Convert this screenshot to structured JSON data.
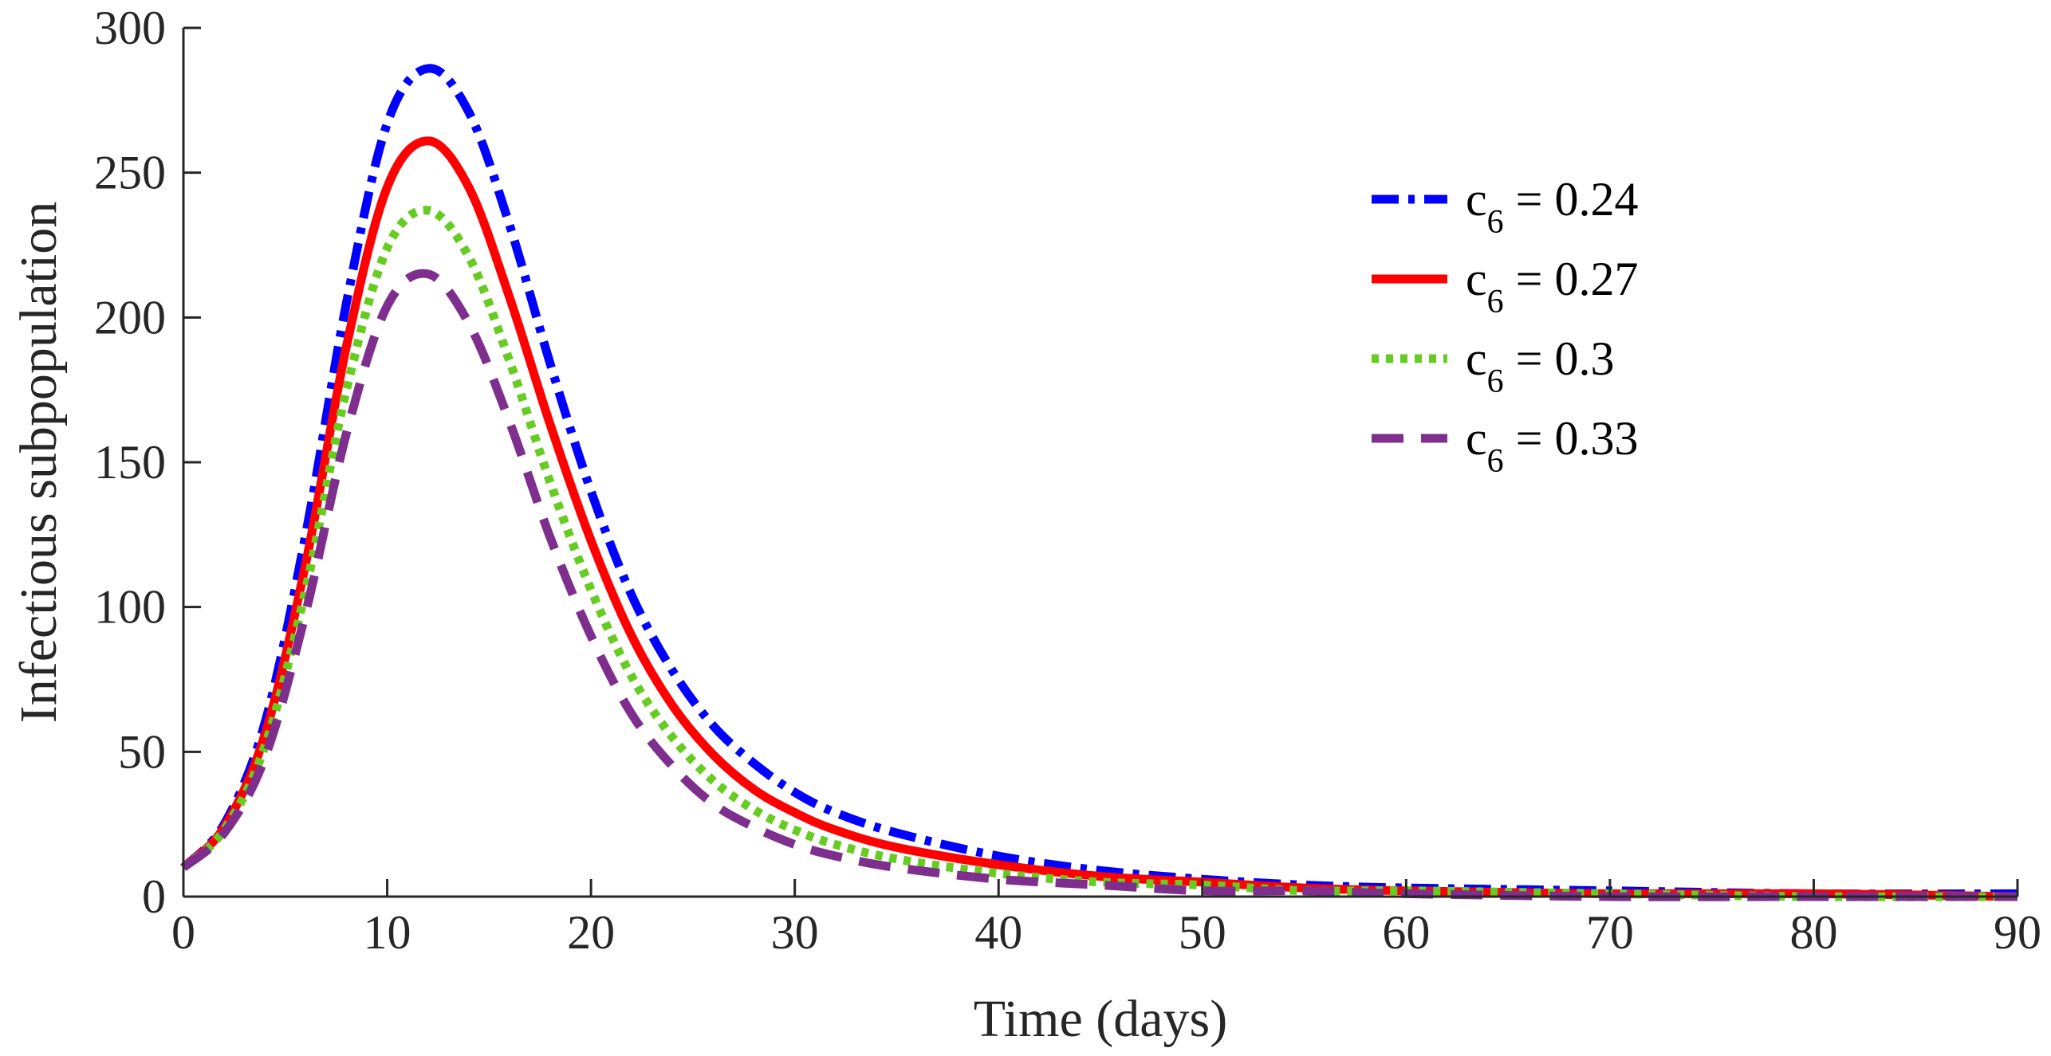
{
  "chart_data": {
    "type": "line",
    "title": "",
    "xlabel": "Time (days)",
    "ylabel": "Infectious subpopulation",
    "xlim": [
      0,
      90
    ],
    "ylim": [
      0,
      300
    ],
    "xticks": [
      0,
      10,
      20,
      30,
      40,
      50,
      60,
      70,
      80,
      90
    ],
    "yticks": [
      0,
      50,
      100,
      150,
      200,
      250,
      300
    ],
    "grid": false,
    "legend_position": "top-right",
    "series": [
      {
        "name": "c6 = 0.24",
        "label_base": "c",
        "label_sub": "6",
        "label_rest": " = 0.24",
        "color": "#0000ff",
        "style": "dashdot",
        "x": [
          0,
          2,
          4,
          6,
          8,
          10,
          12,
          14,
          16,
          18,
          20,
          22,
          24,
          26,
          28,
          30,
          32,
          35,
          40,
          45,
          50,
          55,
          60,
          70,
          80,
          90
        ],
        "y": [
          10,
          25,
          60,
          125,
          205,
          267,
          286,
          271,
          232,
          184,
          140,
          104,
          78,
          59,
          46,
          36,
          29,
          22,
          14,
          9,
          6,
          4,
          3,
          2,
          1,
          1
        ]
      },
      {
        "name": "c6 = 0.27",
        "label_base": "c",
        "label_sub": "6",
        "label_rest": " = 0.27",
        "color": "#ff0000",
        "style": "solid",
        "x": [
          0,
          2,
          4,
          6,
          8,
          10,
          12,
          14,
          16,
          18,
          20,
          22,
          24,
          26,
          28,
          30,
          32,
          35,
          40,
          45,
          50,
          55,
          60,
          70,
          80,
          90
        ],
        "y": [
          10,
          24,
          56,
          115,
          190,
          245,
          261,
          245,
          207,
          163,
          123,
          90,
          66,
          49,
          37,
          29,
          23,
          17,
          11,
          7,
          5,
          3,
          2,
          1,
          1,
          0
        ]
      },
      {
        "name": "c6 = 0.3",
        "label_base": "c",
        "label_sub": "6",
        "label_rest": " = 0.3",
        "color": "#66cc22",
        "style": "dotted",
        "x": [
          0,
          2,
          4,
          6,
          8,
          10,
          12,
          14,
          16,
          18,
          20,
          22,
          24,
          26,
          28,
          30,
          32,
          35,
          40,
          45,
          50,
          55,
          60,
          70,
          80,
          90
        ],
        "y": [
          10,
          23,
          52,
          106,
          175,
          224,
          237,
          221,
          185,
          143,
          106,
          76,
          55,
          40,
          30,
          23,
          18,
          13,
          8,
          5,
          4,
          2,
          2,
          1,
          0,
          0
        ]
      },
      {
        "name": "c6 = 0.33",
        "label_base": "c",
        "label_sub": "6",
        "label_rest": " = 0.33",
        "color": "#7e2f8e",
        "style": "dashed",
        "x": [
          0,
          2,
          4,
          6,
          8,
          10,
          12,
          14,
          16,
          18,
          20,
          22,
          24,
          26,
          28,
          30,
          32,
          35,
          40,
          45,
          50,
          55,
          60,
          70,
          80,
          90
        ],
        "y": [
          10,
          22,
          48,
          98,
          160,
          204,
          215,
          198,
          164,
          124,
          90,
          63,
          45,
          32,
          24,
          18,
          14,
          10,
          6,
          4,
          2,
          2,
          1,
          0,
          0,
          0
        ]
      }
    ]
  }
}
